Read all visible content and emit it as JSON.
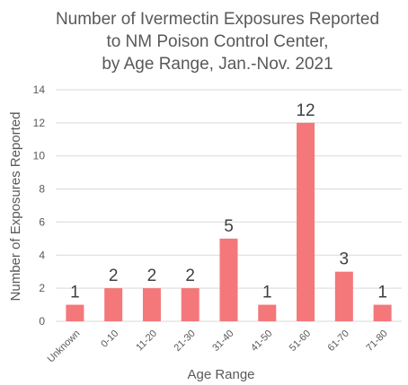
{
  "chart_data": {
    "type": "bar",
    "title_lines": [
      "Number of Ivermectin Exposures Reported",
      "to NM Poison Control Center,",
      "by Age Range, Jan.-Nov. 2021"
    ],
    "categories": [
      "Unknown",
      "0-10",
      "11-20",
      "21-30",
      "31-40",
      "41-50",
      "51-60",
      "61-70",
      "71-80"
    ],
    "values": [
      1,
      2,
      2,
      2,
      5,
      1,
      12,
      3,
      1
    ],
    "data_labels": [
      "1",
      "2",
      "2",
      "2",
      "5",
      "1",
      "12",
      "3",
      "1"
    ],
    "xlabel": "Age Range",
    "ylabel": "Number of Exposures Reported",
    "ylim": [
      0,
      14
    ],
    "yticks": [
      0,
      2,
      4,
      6,
      8,
      10,
      12,
      14
    ],
    "grid": true,
    "bar_color": "#f4777a",
    "grid_color": "#d9d9d9"
  }
}
